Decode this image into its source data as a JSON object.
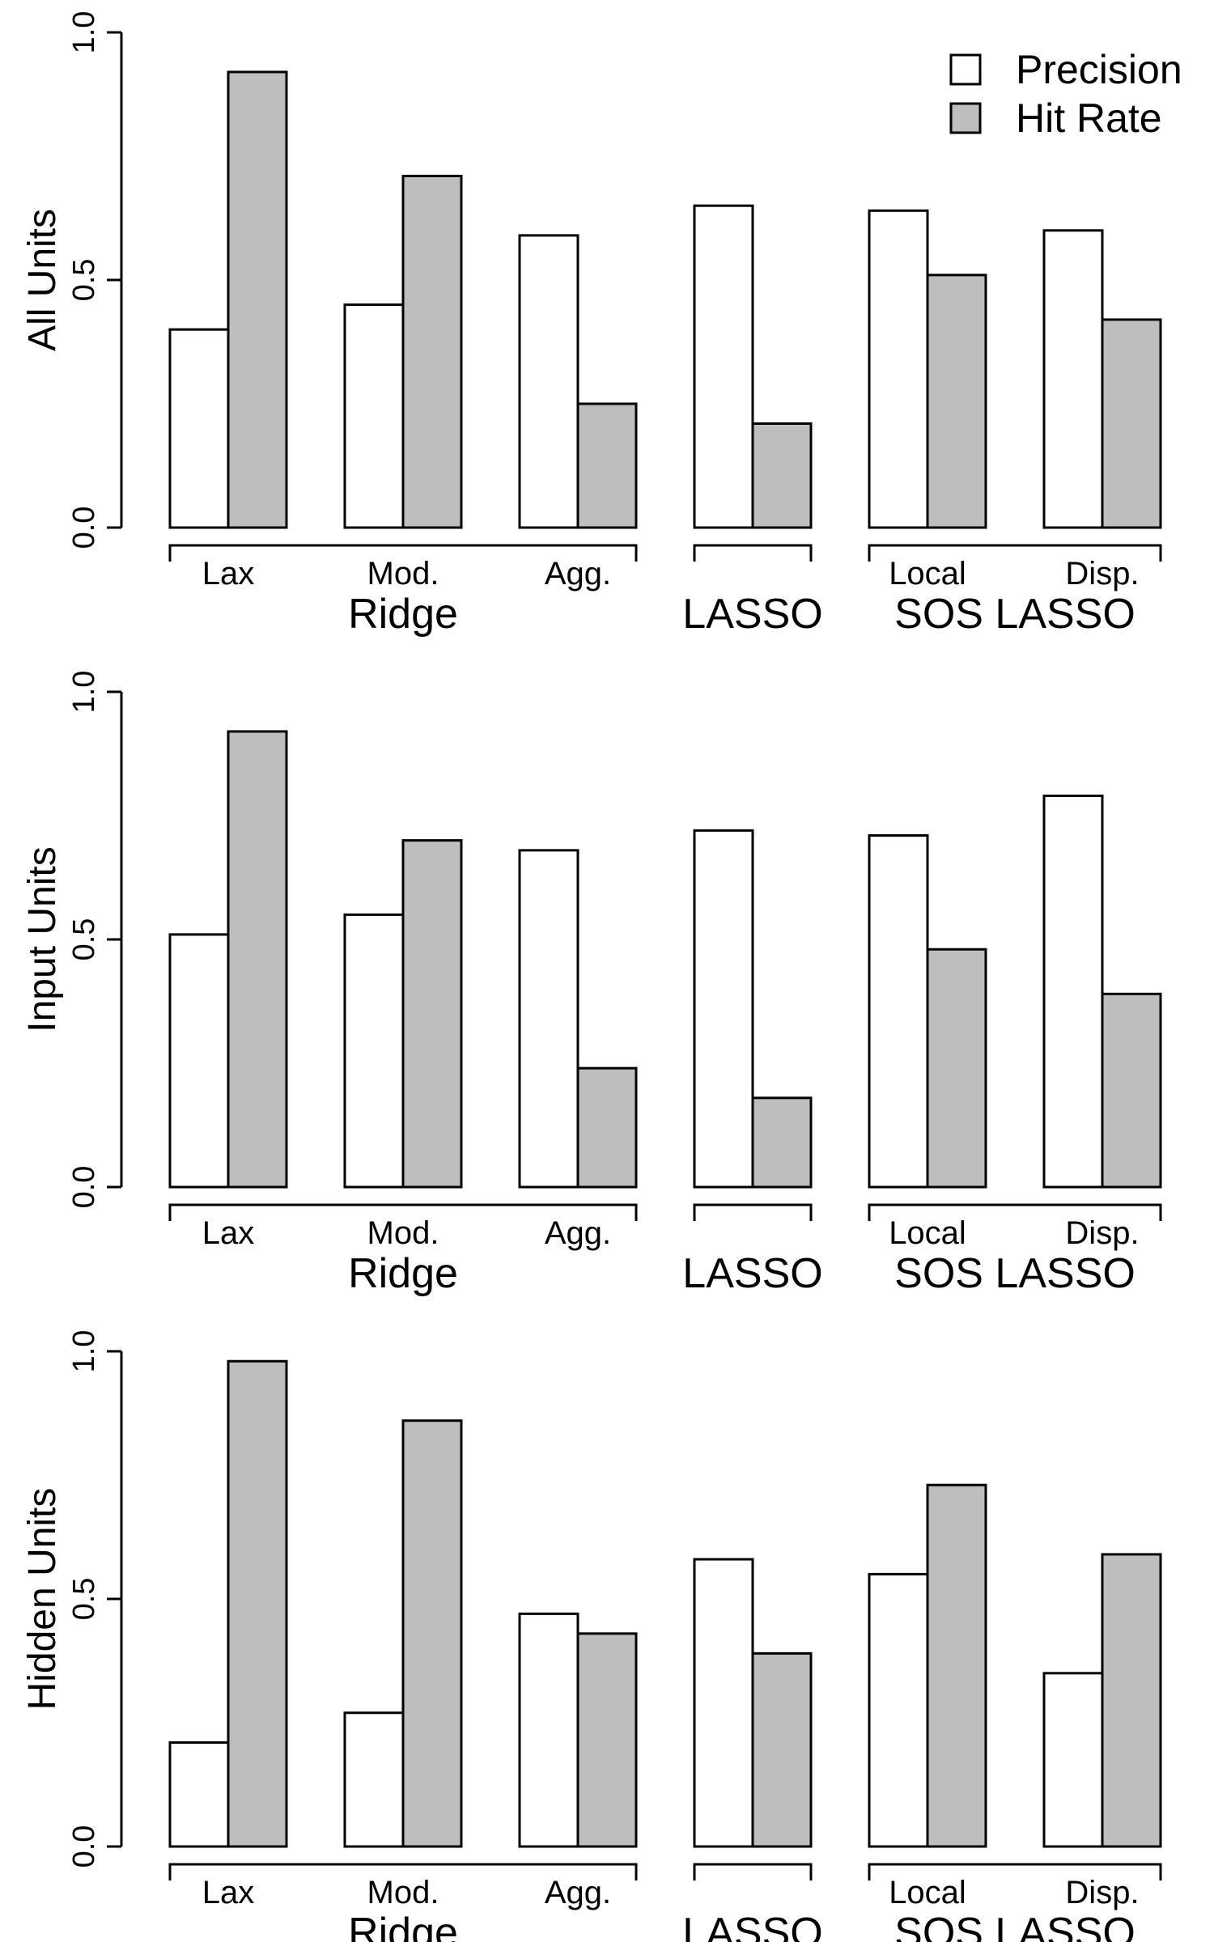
{
  "chart_data": [
    {
      "type": "bar",
      "ylabel": "All Units",
      "ylim": [
        0,
        1
      ],
      "yticks": [
        "0.0",
        "0.5",
        "1.0"
      ],
      "groups": [
        {
          "label": "Ridge",
          "categories": [
            "Lax",
            "Mod.",
            "Agg."
          ]
        },
        {
          "label": "LASSO",
          "categories": [
            ""
          ]
        },
        {
          "label": "SOS LASSO",
          "categories": [
            "Local",
            "Disp."
          ]
        }
      ],
      "categories": [
        "Lax",
        "Mod.",
        "Agg.",
        "",
        "Local",
        "Disp."
      ],
      "series": [
        {
          "name": "Precision",
          "color": "#ffffff",
          "values": [
            0.4,
            0.45,
            0.59,
            0.65,
            0.64,
            0.6
          ]
        },
        {
          "name": "Hit Rate",
          "color": "#bebebe",
          "values": [
            0.92,
            0.71,
            0.25,
            0.21,
            0.51,
            0.42
          ]
        }
      ],
      "legend": {
        "position": "top-right",
        "labels": [
          "Precision",
          "Hit Rate"
        ]
      }
    },
    {
      "type": "bar",
      "ylabel": "Input Units",
      "ylim": [
        0,
        1
      ],
      "yticks": [
        "0.0",
        "0.5",
        "1.0"
      ],
      "groups": [
        {
          "label": "Ridge",
          "categories": [
            "Lax",
            "Mod.",
            "Agg."
          ]
        },
        {
          "label": "LASSO",
          "categories": [
            ""
          ]
        },
        {
          "label": "SOS LASSO",
          "categories": [
            "Local",
            "Disp."
          ]
        }
      ],
      "categories": [
        "Lax",
        "Mod.",
        "Agg.",
        "",
        "Local",
        "Disp."
      ],
      "series": [
        {
          "name": "Precision",
          "color": "#ffffff",
          "values": [
            0.51,
            0.55,
            0.68,
            0.72,
            0.71,
            0.79
          ]
        },
        {
          "name": "Hit Rate",
          "color": "#bebebe",
          "values": [
            0.92,
            0.7,
            0.24,
            0.18,
            0.48,
            0.39
          ]
        }
      ]
    },
    {
      "type": "bar",
      "ylabel": "Hidden Units",
      "ylim": [
        0,
        1
      ],
      "yticks": [
        "0.0",
        "0.5",
        "1.0"
      ],
      "groups": [
        {
          "label": "Ridge",
          "categories": [
            "Lax",
            "Mod.",
            "Agg."
          ]
        },
        {
          "label": "LASSO",
          "categories": [
            ""
          ]
        },
        {
          "label": "SOS LASSO",
          "categories": [
            "Local",
            "Disp."
          ]
        }
      ],
      "categories": [
        "Lax",
        "Mod.",
        "Agg.",
        "",
        "Local",
        "Disp."
      ],
      "series": [
        {
          "name": "Precision",
          "color": "#ffffff",
          "values": [
            0.21,
            0.27,
            0.47,
            0.58,
            0.55,
            0.35
          ]
        },
        {
          "name": "Hit Rate",
          "color": "#bebebe",
          "values": [
            0.98,
            0.86,
            0.43,
            0.39,
            0.73,
            0.59
          ]
        }
      ]
    }
  ]
}
